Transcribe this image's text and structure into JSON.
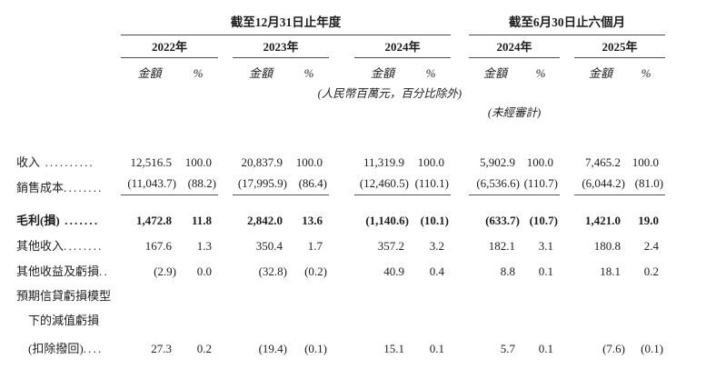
{
  "header": {
    "annual_title": "截至12月31日止年度",
    "interim_title": "截至6月30日止六個月",
    "years": [
      "2022年",
      "2023年",
      "2024年",
      "2024年",
      "2025年"
    ],
    "amount_label": "金額",
    "percent_label": "%",
    "units_note": "(人民幣百萬元，百分比除外)",
    "unaudited_note": "(未經審計)"
  },
  "rows": [
    {
      "label": "收入",
      "dots": " ..........",
      "bold": false,
      "underline": false,
      "indent": false,
      "values": [
        "12,516.5",
        "100.0",
        "20,837.9",
        "100.0",
        "11,319.9",
        "100.0",
        "5,902.9",
        "100.0",
        "7,465.2",
        "100.0"
      ]
    },
    {
      "label": "銷售成本",
      "dots": "........",
      "bold": false,
      "underline": true,
      "indent": false,
      "values": [
        "(11,043.7)",
        "(88.2)",
        "(17,995.9)",
        "(86.4)",
        "(12,460.5)",
        "(110.1)",
        "(6,536.6)",
        "(110.7)",
        "(6,044.2)",
        "(81.0)"
      ]
    },
    {
      "label": "毛利(損)",
      "dots": " .......",
      "bold": true,
      "underline": false,
      "indent": false,
      "values": [
        "1,472.8",
        "11.8",
        "2,842.0",
        "13.6",
        "(1,140.6)",
        "(10.1)",
        "(633.7)",
        "(10.7)",
        "1,421.0",
        "19.0"
      ]
    },
    {
      "label": "其他收入",
      "dots": "........",
      "bold": false,
      "underline": false,
      "indent": false,
      "values": [
        "167.6",
        "1.3",
        "350.4",
        "1.7",
        "357.2",
        "3.2",
        "182.1",
        "3.1",
        "180.8",
        "2.4"
      ]
    },
    {
      "label": "其他收益及虧損",
      "dots": "..",
      "bold": false,
      "underline": false,
      "indent": false,
      "values": [
        "(2.9)",
        "0.0",
        "(32.8)",
        "(0.2)",
        "40.9",
        "0.4",
        "8.8",
        "0.1",
        "18.1",
        "0.2"
      ]
    },
    {
      "label": "預期信貸虧損模型",
      "dots": "",
      "bold": false,
      "underline": false,
      "indent": false,
      "values": []
    },
    {
      "label": "下的減值虧損",
      "dots": "",
      "bold": false,
      "underline": false,
      "indent": true,
      "values": []
    },
    {
      "label": "(扣除撥回)",
      "dots": "....",
      "bold": false,
      "underline": false,
      "indent": true,
      "values": [
        "27.3",
        "0.2",
        "(19.4)",
        "(0.1)",
        "15.1",
        "0.1",
        "5.7",
        "0.1",
        "(7.6)",
        "(0.1)"
      ]
    }
  ],
  "colors": {
    "text": "#1d1d1d",
    "rule": "#4a4a4a"
  }
}
